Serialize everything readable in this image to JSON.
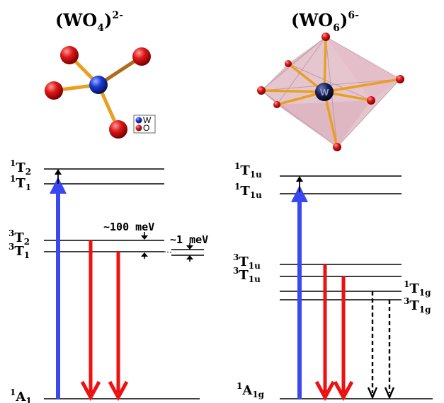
{
  "left_panel": {
    "title_main": "(WO",
    "title_sub": "4",
    "title_close": ")",
    "title_charge": "2-",
    "legend": {
      "w_label": "W",
      "o_label": "O"
    },
    "levels": {
      "t2_1_main": "T",
      "t2_1_sup": "1",
      "t2_1_sub": "2",
      "t1_1_main": "T",
      "t1_1_sup": "1",
      "t1_1_sub": "1",
      "t2_3_main": "T",
      "t2_3_sup": "3",
      "t2_3_sub": "2",
      "t1_3_main": "T",
      "t1_3_sup": "3",
      "t1_3_sub": "1",
      "a1_main": "A",
      "a1_sup": "1",
      "a1_sub": "1"
    },
    "annotations": {
      "gap_large": "~100 meV",
      "gap_small": "~1 meV"
    }
  },
  "right_panel": {
    "title_main": "(WO",
    "title_sub": "6",
    "title_close": ")",
    "title_charge": "6-",
    "center_atom_label": "W",
    "levels": {
      "t1u_1a_main": "T",
      "t1u_1a_sup": "1",
      "t1u_1a_sub": "1u",
      "t1u_1b_main": "T",
      "t1u_1b_sup": "1",
      "t1u_1b_sub": "1u",
      "t1u_3a_main": "T",
      "t1u_3a_sup": "3",
      "t1u_3a_sub": "1u",
      "t1u_3b_main": "T",
      "t1u_3b_sup": "3",
      "t1u_3b_sub": "1u",
      "t1g_1_main": "T",
      "t1g_1_sup": "1",
      "t1g_1_sub": "1g",
      "t1g_3_main": "T",
      "t1g_3_sup": "3",
      "t1g_3_sub": "1g",
      "a1g_main": "A",
      "a1g_sup": "1",
      "a1g_sub": "1g"
    }
  },
  "colors": {
    "excitation": "#3b48f0",
    "emission": "#ee1111",
    "nonradiative": "#000000",
    "oxygen": "#dd1111",
    "tungsten": "#1a3ad8",
    "tungsten_dark": "#101848",
    "bond": "#e8a020",
    "octahedron_face": "#c98a9c"
  }
}
